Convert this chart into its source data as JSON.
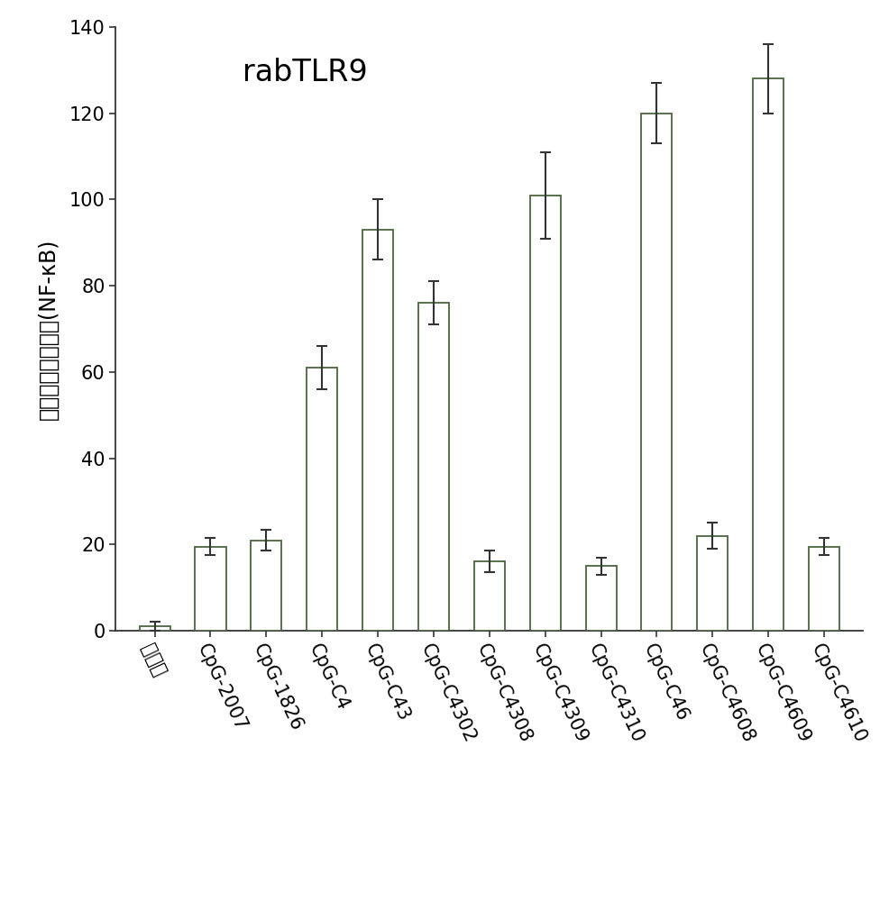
{
  "categories": [
    "控制组",
    "CpG-2007",
    "CpG-1826",
    "CpG-C4",
    "CpG-C43",
    "CpG-C4302",
    "CpG-C4308",
    "CpG-C4309",
    "CpG-C4310",
    "CpG-C46",
    "CpG-C4608",
    "CpG-C4609",
    "CpG-C4610"
  ],
  "values": [
    1,
    19.5,
    21,
    61,
    93,
    76,
    16,
    101,
    15,
    120,
    22,
    128,
    19.5
  ],
  "errors": [
    1,
    2,
    2.5,
    5,
    7,
    5,
    2.5,
    10,
    2,
    7,
    3,
    8,
    2
  ],
  "bar_color": "#ffffff",
  "bar_edge_color": "#4a6741",
  "error_color": "#333333",
  "title": "rabTLR9",
  "ylabel": "相对荧光素酶活性(NF-κB)",
  "ylim": [
    0,
    140
  ],
  "yticks": [
    0,
    20,
    40,
    60,
    80,
    100,
    120,
    140
  ],
  "background_color": "#ffffff",
  "title_fontsize": 24,
  "ylabel_fontsize": 17,
  "tick_fontsize": 15,
  "xtick_fontsize": 15,
  "bar_width": 0.55
}
